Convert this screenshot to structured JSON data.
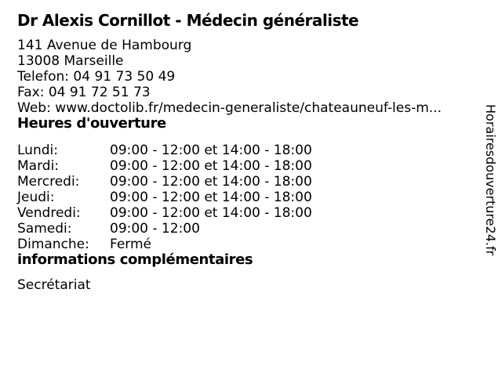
{
  "header": {
    "title": "Dr Alexis Cornillot - Médecin généraliste"
  },
  "contact": {
    "lines": [
      "141 Avenue de Hambourg",
      "13008 Marseille",
      "Telefon: 04 91 73 50 49",
      "Fax: 04 91 72 51 73",
      "Web: www.doctolib.fr/medecin-generaliste/chateauneuf-les-m..."
    ]
  },
  "hours": {
    "heading": "Heures d'ouverture",
    "rows": [
      {
        "day": "Lundi:",
        "time": "09:00 - 12:00 et 14:00 - 18:00"
      },
      {
        "day": "Mardi:",
        "time": "09:00 - 12:00 et 14:00 - 18:00"
      },
      {
        "day": "Mercredi:",
        "time": "09:00 - 12:00 et 14:00 - 18:00"
      },
      {
        "day": "Jeudi:",
        "time": "09:00 - 12:00 et 14:00 - 18:00"
      },
      {
        "day": "Vendredi:",
        "time": "09:00 - 12:00 et 14:00 - 18:00"
      },
      {
        "day": "Samedi:",
        "time": "09:00 - 12:00"
      },
      {
        "day": "Dimanche:",
        "time": "Fermé"
      }
    ]
  },
  "additional": {
    "heading": "informations complémentaires",
    "text": "Secrétariat"
  },
  "watermark": {
    "text": "Horairesdouverture24.fr"
  },
  "colors": {
    "text": "#000000",
    "background": "#ffffff"
  }
}
